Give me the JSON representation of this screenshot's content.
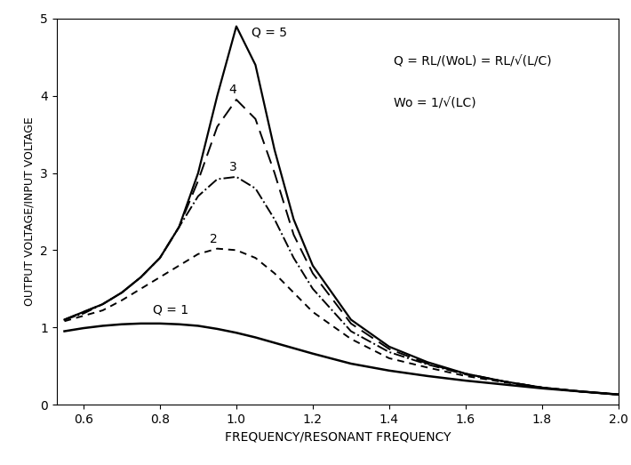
{
  "chart_data": {
    "type": "line",
    "x_label": "FREQUENCY/RESONANT FREQUENCY",
    "y_label": "OUTPUT VOLTAGE/INPUT VOLTAGE",
    "annotations": [
      "Q = RL/(WoL) = RL/√(L/C)",
      "Wo = 1/√(LC)"
    ],
    "x": [
      0.55,
      0.6,
      0.65,
      0.7,
      0.75,
      0.8,
      0.85,
      0.9,
      0.95,
      1.0,
      1.05,
      1.1,
      1.15,
      1.2,
      1.3,
      1.4,
      1.5,
      1.6,
      1.7,
      1.8,
      1.9,
      2.0
    ],
    "series": [
      {
        "name": "Q = 5",
        "color": "#000000",
        "line_style": "solid",
        "values": [
          1.1,
          1.2,
          1.3,
          1.45,
          1.65,
          1.9,
          2.3,
          3.0,
          4.0,
          4.9,
          4.4,
          3.3,
          2.4,
          1.8,
          1.1,
          0.75,
          0.55,
          0.4,
          0.3,
          0.22,
          0.17,
          0.13
        ]
      },
      {
        "name": "4",
        "color": "#000000",
        "line_style": "dashed",
        "values": [
          1.1,
          1.2,
          1.3,
          1.45,
          1.65,
          1.9,
          2.3,
          2.9,
          3.6,
          3.95,
          3.7,
          3.0,
          2.2,
          1.7,
          1.05,
          0.72,
          0.53,
          0.4,
          0.3,
          0.22,
          0.17,
          0.13
        ]
      },
      {
        "name": "3",
        "color": "#000000",
        "line_style": "dashdot",
        "values": [
          1.1,
          1.18,
          1.3,
          1.45,
          1.65,
          1.9,
          2.3,
          2.7,
          2.92,
          2.95,
          2.8,
          2.4,
          1.9,
          1.5,
          0.95,
          0.68,
          0.52,
          0.39,
          0.3,
          0.22,
          0.17,
          0.13
        ]
      },
      {
        "name": "2",
        "color": "#000000",
        "line_style": "dotted",
        "values": [
          1.08,
          1.15,
          1.22,
          1.35,
          1.5,
          1.65,
          1.8,
          1.95,
          2.02,
          2.0,
          1.9,
          1.7,
          1.45,
          1.2,
          0.85,
          0.6,
          0.48,
          0.37,
          0.29,
          0.22,
          0.17,
          0.13
        ]
      },
      {
        "name": "Q = 1",
        "color": "#000000",
        "line_style": "solid",
        "values": [
          0.95,
          0.99,
          1.02,
          1.04,
          1.05,
          1.05,
          1.04,
          1.02,
          0.98,
          0.93,
          0.87,
          0.8,
          0.73,
          0.66,
          0.53,
          0.44,
          0.37,
          0.31,
          0.26,
          0.21,
          0.17,
          0.13
        ]
      }
    ],
    "xlim": [
      0.53,
      2.0
    ],
    "ylim": [
      0,
      5
    ],
    "xticks": [
      {
        "value": 0.6,
        "label": "0.6"
      },
      {
        "value": 0.8,
        "label": "0.8"
      },
      {
        "value": 1.0,
        "label": "1.0"
      },
      {
        "value": 1.2,
        "label": "1.2"
      },
      {
        "value": 1.4,
        "label": "1.4"
      },
      {
        "value": 1.6,
        "label": "1.6"
      },
      {
        "value": 1.8,
        "label": "1.8"
      },
      {
        "value": 2.0,
        "label": "2.0"
      }
    ],
    "yticks": [
      0,
      1,
      2,
      3,
      4,
      5
    ],
    "grid": false
  }
}
